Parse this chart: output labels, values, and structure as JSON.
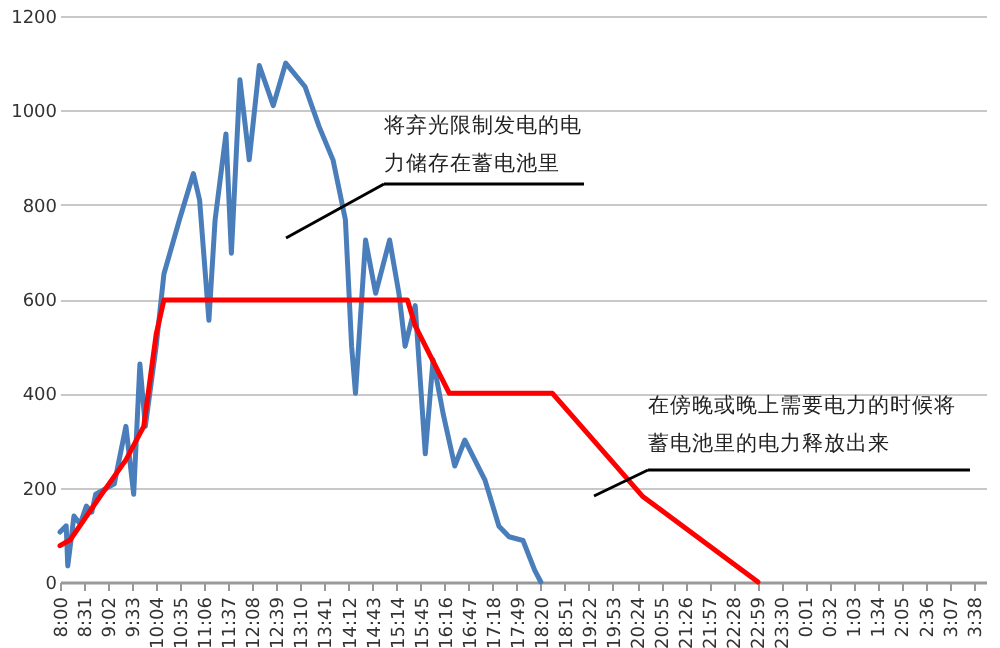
{
  "chart_data": {
    "type": "line",
    "annotations": [
      "将弃光限制发电的电力储存在蓄电池里",
      "在傍晚或晚上需要电力的时候将蓄电池里的电力释放出来"
    ],
    "series": [
      {
        "color": "#4a7ebb",
        "x": [
          "2000-01-01T08:00",
          "2000-01-01T08:08",
          "2000-01-01T08:10",
          "2000-01-01T08:18",
          "2000-01-01T08:26",
          "2000-01-01T08:34",
          "2000-01-01T08:41",
          "2000-01-01T08:46",
          "2000-01-01T09:10",
          "2000-01-01T09:25",
          "2000-01-01T09:35",
          "2000-01-01T09:43",
          "2000-01-01T09:50",
          "2000-01-01T10:04",
          "2000-01-01T10:14",
          "2000-01-01T10:34",
          "2000-01-01T10:52",
          "2000-01-01T11:00",
          "2000-01-01T11:12",
          "2000-01-01T11:20",
          "2000-01-01T11:34",
          "2000-01-01T11:41",
          "2000-01-01T11:52",
          "2000-01-01T12:04",
          "2000-01-01T12:17",
          "2000-01-01T12:35",
          "2000-01-01T12:51",
          "2000-01-01T13:16",
          "2000-01-01T13:34",
          "2000-01-01T13:52",
          "2000-01-01T14:08",
          "2000-01-01T14:16",
          "2000-01-01T14:21",
          "2000-01-01T14:34",
          "2000-01-01T14:47",
          "2000-01-01T15:05",
          "2000-01-01T15:17",
          "2000-01-01T15:25",
          "2000-01-01T15:38",
          "2000-01-01T15:51",
          "2000-01-01T16:01",
          "2000-01-01T16:14",
          "2000-01-01T16:29",
          "2000-01-01T16:42",
          "2000-01-01T17:08",
          "2000-01-01T17:26",
          "2000-01-01T17:39",
          "2000-01-01T17:57",
          "2000-01-01T18:12",
          "2000-01-01T18:20"
        ],
        "values": [
          106,
          119,
          34,
          140,
          123,
          161,
          148,
          186,
          208,
          330,
          186,
          462,
          330,
          500,
          653,
          768,
          866,
          810,
          555,
          768,
          950,
          697,
          1065,
          895,
          1095,
          1010,
          1100,
          1050,
          966,
          895,
          768,
          500,
          400,
          725,
          612,
          725,
          612,
          500,
          586,
          272,
          471,
          357,
          246,
          301,
          216,
          118,
          96,
          88,
          25,
          0
        ]
      },
      {
        "color": "#ff0000",
        "x": [
          "2000-01-01T08:00",
          "2000-01-01T08:13",
          "2000-01-01T08:52",
          "2000-01-01T09:25",
          "2000-01-01T09:48",
          "2000-01-01T10:04",
          "2000-01-01T10:14",
          "2000-01-01T15:28",
          "2000-01-01T15:38",
          "2000-01-01T16:22",
          "2000-01-01T18:35",
          "2000-01-01T20:31",
          "2000-01-01T23:00"
        ],
        "values": [
          77,
          89,
          182,
          259,
          330,
          525,
          598,
          598,
          543,
          400,
          400,
          182,
          0
        ]
      }
    ],
    "xlim": [
      "2000-01-01T08:00",
      "2000-01-02T03:54"
    ],
    "xticks": [
      {
        "value": "2000-01-01T08:00",
        "label": "8:00"
      },
      {
        "value": "2000-01-01T08:31",
        "label": "8:31"
      },
      {
        "value": "2000-01-01T09:02",
        "label": "9:02"
      },
      {
        "value": "2000-01-01T09:33",
        "label": "9:33"
      },
      {
        "value": "2000-01-01T10:04",
        "label": "10:04"
      },
      {
        "value": "2000-01-01T10:35",
        "label": "10:35"
      },
      {
        "value": "2000-01-01T11:06",
        "label": "11:06"
      },
      {
        "value": "2000-01-01T11:37",
        "label": "11:37"
      },
      {
        "value": "2000-01-01T12:08",
        "label": "12:08"
      },
      {
        "value": "2000-01-01T12:39",
        "label": "12:39"
      },
      {
        "value": "2000-01-01T13:10",
        "label": "13:10"
      },
      {
        "value": "2000-01-01T13:41",
        "label": "13:41"
      },
      {
        "value": "2000-01-01T14:12",
        "label": "14:12"
      },
      {
        "value": "2000-01-01T14:43",
        "label": "14:43"
      },
      {
        "value": "2000-01-01T15:14",
        "label": "15:14"
      },
      {
        "value": "2000-01-01T15:45",
        "label": "15:45"
      },
      {
        "value": "2000-01-01T16:16",
        "label": "16:16"
      },
      {
        "value": "2000-01-01T16:47",
        "label": "16:47"
      },
      {
        "value": "2000-01-01T17:18",
        "label": "17:18"
      },
      {
        "value": "2000-01-01T17:49",
        "label": "17:49"
      },
      {
        "value": "2000-01-01T18:20",
        "label": "18:20"
      },
      {
        "value": "2000-01-01T18:51",
        "label": "18:51"
      },
      {
        "value": "2000-01-01T19:22",
        "label": "19:22"
      },
      {
        "value": "2000-01-01T19:53",
        "label": "19:53"
      },
      {
        "value": "2000-01-01T20:24",
        "label": "20:24"
      },
      {
        "value": "2000-01-01T20:55",
        "label": "20:55"
      },
      {
        "value": "2000-01-01T21:26",
        "label": "21:26"
      },
      {
        "value": "2000-01-01T21:57",
        "label": "21:57"
      },
      {
        "value": "2000-01-01T22:28",
        "label": "22:28"
      },
      {
        "value": "2000-01-01T22:59",
        "label": "22:59"
      },
      {
        "value": "2000-01-01T23:30",
        "label": "23:30"
      },
      {
        "value": "2000-01-02T00:01",
        "label": "0:01"
      },
      {
        "value": "2000-01-02T00:32",
        "label": "0:32"
      },
      {
        "value": "2000-01-02T01:03",
        "label": "1:03"
      },
      {
        "value": "2000-01-02T01:34",
        "label": "1:34"
      },
      {
        "value": "2000-01-02T02:05",
        "label": "2:05"
      },
      {
        "value": "2000-01-02T02:36",
        "label": "2:36"
      },
      {
        "value": "2000-01-02T03:07",
        "label": "3:07"
      },
      {
        "value": "2000-01-02T03:38",
        "label": "3:38"
      }
    ],
    "ylim": [
      0,
      1200
    ],
    "yticks": [
      0,
      200,
      400,
      600,
      800,
      1000,
      1200
    ],
    "grid": "y",
    "line_style": "solid"
  }
}
